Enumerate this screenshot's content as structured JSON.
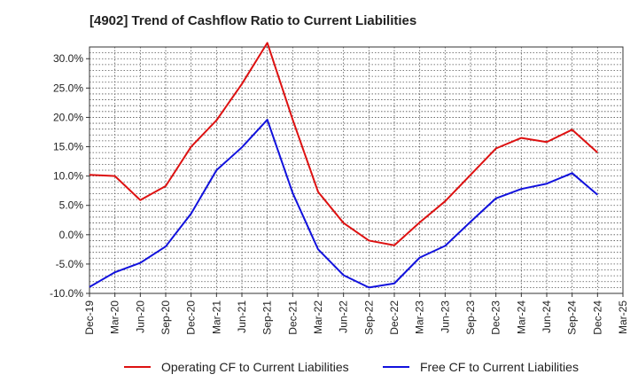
{
  "chart_data": {
    "type": "line",
    "title": "[4902]  Trend of Cashflow Ratio to Current Liabilities",
    "xlabel": "",
    "ylabel": "",
    "x": [
      "Dec-19",
      "Mar-20",
      "Jun-20",
      "Sep-20",
      "Dec-20",
      "Mar-21",
      "Jun-21",
      "Sep-21",
      "Dec-21",
      "Mar-22",
      "Jun-22",
      "Sep-22",
      "Dec-22",
      "Mar-23",
      "Jun-23",
      "Sep-23",
      "Dec-23",
      "Mar-24",
      "Jun-24",
      "Sep-24",
      "Dec-24",
      "Mar-25"
    ],
    "ylim": [
      -10,
      32
    ],
    "yticks": [
      -10,
      -5,
      0,
      5,
      10,
      15,
      20,
      25,
      30
    ],
    "ytick_labels": [
      "-10.0%",
      "-5.0%",
      "0.0%",
      "5.0%",
      "10.0%",
      "15.0%",
      "20.0%",
      "25.0%",
      "30.0%"
    ],
    "grid": true,
    "legend_position": "bottom",
    "series": [
      {
        "name": "Operating CF to Current Liabilities",
        "color": "#dd1111",
        "values": [
          10.2,
          10.0,
          5.9,
          8.3,
          15.0,
          19.5,
          25.7,
          32.7,
          19.6,
          7.3,
          2.0,
          -1.0,
          -1.8,
          2.1,
          5.7,
          10.2,
          14.7,
          16.5,
          15.8,
          17.9,
          14.0,
          null
        ]
      },
      {
        "name": "Free CF to Current Liabilities",
        "color": "#1111dd",
        "values": [
          -8.9,
          -6.4,
          -4.8,
          -2.0,
          3.6,
          11.0,
          14.9,
          19.6,
          7.1,
          -2.5,
          -6.9,
          -9.0,
          -8.3,
          -3.9,
          -1.9,
          2.2,
          6.2,
          7.8,
          8.7,
          10.5,
          6.8,
          null
        ]
      }
    ]
  }
}
